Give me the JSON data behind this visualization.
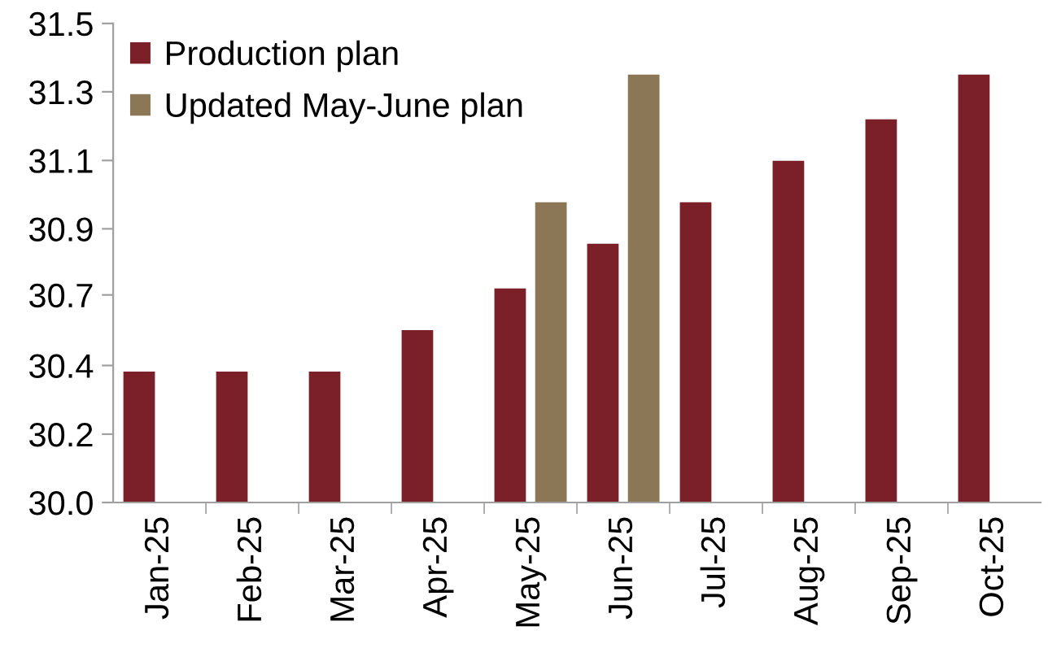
{
  "chart_data": {
    "type": "bar",
    "categories": [
      "Jan-25",
      "Feb-25",
      "Mar-25",
      "Apr-25",
      "May-25",
      "Jun-25",
      "Jul-25",
      "Aug-25",
      "Sep-25",
      "Oct-25"
    ],
    "series": [
      {
        "name": "Production plan",
        "color": "#7b2029",
        "values": [
          30.41,
          30.41,
          30.41,
          30.54,
          30.67,
          30.81,
          30.94,
          31.07,
          31.2,
          31.34
        ]
      },
      {
        "name": "Updated May-June plan",
        "color": "#8b7656",
        "values": [
          null,
          null,
          null,
          null,
          30.94,
          31.34,
          null,
          null,
          null,
          null
        ]
      }
    ],
    "ylim": [
      30.0,
      31.5
    ],
    "yticks": [
      {
        "value": 30.0,
        "label": "30.0"
      },
      {
        "value": 30.214,
        "label": "30.2"
      },
      {
        "value": 30.429,
        "label": "30.4"
      },
      {
        "value": 30.65,
        "label": "30.7"
      },
      {
        "value": 30.857,
        "label": "30.9"
      },
      {
        "value": 31.071,
        "label": "31.1"
      },
      {
        "value": 31.286,
        "label": "31.3"
      },
      {
        "value": 31.5,
        "label": "31.5"
      }
    ],
    "grid": false,
    "legend": "top left"
  }
}
